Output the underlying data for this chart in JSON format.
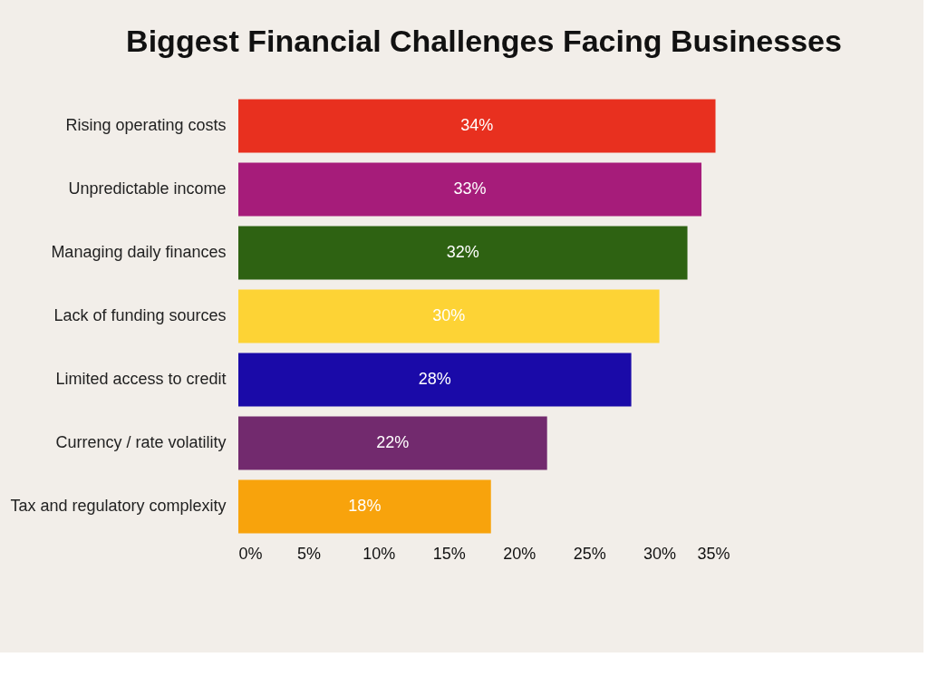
{
  "chart_data": {
    "type": "bar",
    "orientation": "horizontal",
    "title": "Biggest Financial Challenges Facing Businesses",
    "categories": [
      "Rising operating costs",
      "Unpredictable income",
      "Managing daily finances",
      "Lack of funding sources",
      "Limited access to credit",
      "Currency / rate volatility",
      "Tax and regulatory complexity"
    ],
    "values": [
      34,
      33,
      32,
      30,
      28,
      22,
      18
    ],
    "colors": [
      "#e8301f",
      "#a61c7a",
      "#2e6212",
      "#fdd335",
      "#1a0aa8",
      "#722a6e",
      "#f8a30c"
    ],
    "value_labels": [
      "34%",
      "33%",
      "32%",
      "30%",
      "28%",
      "22%",
      "18%"
    ],
    "xlim": [
      0,
      35
    ],
    "xticks": [
      {
        "value": 0,
        "label": "0%"
      },
      {
        "value": 5,
        "label": "5%"
      },
      {
        "value": 10,
        "label": "10%"
      },
      {
        "value": 15,
        "label": "15%"
      },
      {
        "value": 20,
        "label": "20%"
      },
      {
        "value": 25,
        "label": "25%"
      },
      {
        "value": 30,
        "label": "30%"
      },
      {
        "value": 35,
        "label": "35%"
      }
    ],
    "grid": false,
    "legend": false
  }
}
